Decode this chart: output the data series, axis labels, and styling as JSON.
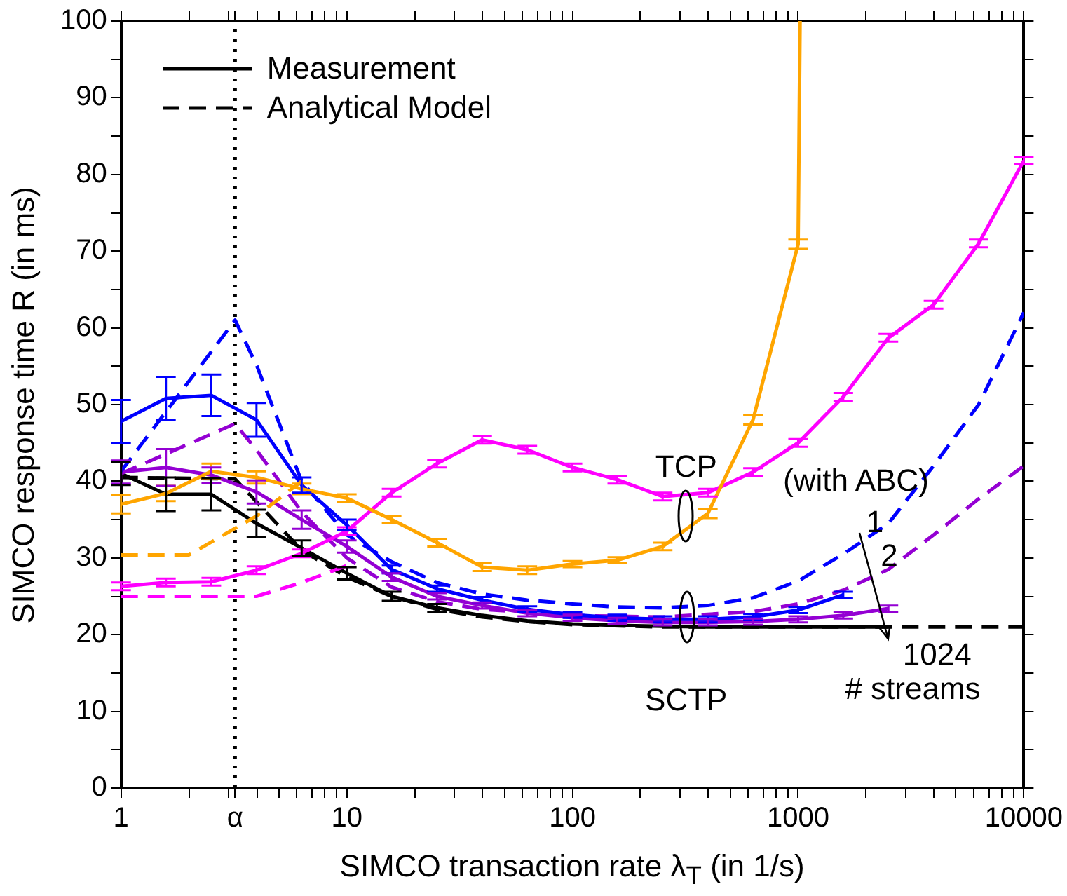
{
  "chart_data": {
    "type": "line",
    "xlabel": "SIMCO transaction rate λ$_{T}$ (in 1/s)",
    "ylabel": "SIMCO response time R (in ms)",
    "log": "x",
    "xlim": [
      1,
      10000
    ],
    "ylim": [
      0,
      100
    ],
    "xticks": [
      1,
      {
        "value": 2,
        "label": null
      },
      {
        "value": 3,
        "label": null
      },
      {
        "value": 3.2,
        "label": "α"
      },
      {
        "value": 4,
        "label": null
      },
      {
        "value": 5,
        "label": null
      },
      {
        "value": 6,
        "label": null
      },
      {
        "value": 7,
        "label": null
      },
      {
        "value": 8,
        "label": null
      },
      {
        "value": 9,
        "label": null
      },
      10,
      {
        "value": 20,
        "label": null
      },
      {
        "value": 30,
        "label": null
      },
      {
        "value": 40,
        "label": null
      },
      {
        "value": 50,
        "label": null
      },
      {
        "value": 60,
        "label": null
      },
      {
        "value": 70,
        "label": null
      },
      {
        "value": 80,
        "label": null
      },
      {
        "value": 90,
        "label": null
      },
      100,
      {
        "value": 200,
        "label": null
      },
      {
        "value": 300,
        "label": null
      },
      {
        "value": 400,
        "label": null
      },
      {
        "value": 500,
        "label": null
      },
      {
        "value": 600,
        "label": null
      },
      {
        "value": 700,
        "label": null
      },
      {
        "value": 800,
        "label": null
      },
      {
        "value": 900,
        "label": null
      },
      1000,
      {
        "value": 2000,
        "label": null
      },
      {
        "value": 3000,
        "label": null
      },
      {
        "value": 4000,
        "label": null
      },
      {
        "value": 5000,
        "label": null
      },
      {
        "value": 6000,
        "label": null
      },
      {
        "value": 7000,
        "label": null
      },
      {
        "value": 8000,
        "label": null
      },
      {
        "value": 9000,
        "label": null
      },
      10000
    ],
    "yticks": [
      0,
      {
        "value": 5,
        "label": null
      },
      10,
      {
        "value": 15,
        "label": null
      },
      20,
      {
        "value": 25,
        "label": null
      },
      30,
      {
        "value": 35,
        "label": null
      },
      40,
      {
        "value": 45,
        "label": null
      },
      50,
      {
        "value": 55,
        "label": null
      },
      60,
      {
        "value": 65,
        "label": null
      },
      70,
      {
        "value": 75,
        "label": null
      },
      80,
      {
        "value": 85,
        "label": null
      },
      90,
      {
        "value": 95,
        "label": null
      },
      100
    ],
    "grid": false,
    "legend": "top left",
    "marker": "none",
    "line_style": "solid",
    "ref_lines": [
      {
        "axis": "x",
        "value": 3.2,
        "color": "#000000",
        "line_style": "dotted"
      }
    ],
    "series": [
      {
        "color": "#ffa500",
        "x": [
          1,
          1.58,
          2.51,
          3.98,
          6.31,
          10,
          15.8,
          25.1,
          39.8,
          63.1,
          100,
          158,
          251,
          398,
          631,
          1000,
          1020
        ],
        "values": [
          37,
          38.4,
          41.3,
          40.5,
          39,
          37.8,
          35,
          32,
          28.8,
          28.4,
          29.2,
          29.7,
          31.5,
          35.8,
          48,
          70.9,
          100
        ],
        "errors": [
          1.2,
          1,
          1,
          0.8,
          0.7,
          0.5,
          0.5,
          0.5,
          0.5,
          0.5,
          0.4,
          0.4,
          0.5,
          0.6,
          0.6,
          0.6,
          null
        ]
      },
      {
        "color": "#ffa500",
        "line_style": "dashed",
        "x": [
          1,
          2,
          4,
          6.31
        ],
        "values": [
          30.4,
          30.4,
          35.5,
          40
        ]
      },
      {
        "color": "#ff00ff",
        "x": [
          1,
          1.58,
          2.51,
          3.98,
          6.31,
          10,
          15.8,
          25.1,
          39.8,
          63.1,
          100,
          158,
          251,
          398,
          631,
          1000,
          1585,
          2512,
          3981,
          6310,
          10000
        ],
        "values": [
          26.3,
          26.8,
          26.9,
          28.4,
          30.6,
          33.5,
          38.5,
          42.3,
          45.4,
          44.1,
          41.8,
          40.2,
          38,
          38.5,
          41.2,
          45,
          51,
          58.7,
          63,
          71,
          81.8
        ],
        "errors": [
          0.5,
          0.5,
          0.5,
          0.5,
          0.5,
          0.5,
          0.5,
          0.5,
          0.5,
          0.5,
          0.5,
          0.5,
          0.5,
          0.5,
          0.5,
          0.5,
          0.5,
          0.5,
          0.5,
          0.5,
          0.5
        ]
      },
      {
        "color": "#ff00ff",
        "line_style": "dashed",
        "x": [
          1,
          3.98,
          6.31,
          10
        ],
        "values": [
          25,
          25,
          26.8,
          29
        ]
      },
      {
        "color": "#0000ff",
        "x": [
          1,
          1.58,
          2.51,
          3.98,
          6.31,
          10,
          15.8,
          25.1,
          39.8,
          63.1,
          100,
          158,
          251,
          398,
          631,
          1000,
          1585
        ],
        "values": [
          47.8,
          50.8,
          51.2,
          48,
          39.5,
          34.3,
          28.5,
          26,
          24.5,
          23.3,
          22.6,
          22.2,
          22,
          22,
          22.3,
          23.2,
          25.2
        ],
        "errors": [
          2.8,
          2.8,
          2.7,
          2.2,
          1,
          0.7,
          0.5,
          0.4,
          0.4,
          0.4,
          0.4,
          0.4,
          0.4,
          0.4,
          0.4,
          0.4,
          0.4
        ]
      },
      {
        "color": "#0000ff",
        "line_style": "dashed",
        "x": [
          1,
          3.2,
          4,
          6.31,
          10,
          15.8,
          25.1,
          39.8,
          63.1,
          100,
          158,
          251,
          398,
          631,
          1000,
          1585,
          2512,
          3981,
          6310,
          10000
        ],
        "values": [
          41.3,
          61,
          55,
          40,
          33,
          29.5,
          26.8,
          25.3,
          24.5,
          24,
          23.6,
          23.5,
          23.8,
          24.8,
          27,
          30.5,
          34.5,
          42,
          50,
          62
        ]
      },
      {
        "color": "#9400d3",
        "x": [
          1,
          1.58,
          2.51,
          3.98,
          6.31,
          10,
          15.8,
          25.1,
          39.8,
          63.1,
          100,
          158,
          251,
          398,
          631,
          1000,
          1585,
          2512
        ],
        "values": [
          41.2,
          41.8,
          40.8,
          38.6,
          35,
          31.5,
          27.5,
          25,
          23.8,
          22.8,
          22.2,
          21.8,
          21.6,
          21.6,
          21.7,
          22,
          22.5,
          23.4
        ],
        "errors": [
          1.5,
          2.4,
          1,
          1.5,
          1.2,
          0.8,
          0.5,
          0.4,
          0.4,
          0.4,
          0.4,
          0.4,
          0.4,
          0.4,
          0.4,
          0.4,
          0.4,
          0.4
        ]
      },
      {
        "color": "#9400d3",
        "line_style": "dashed",
        "x": [
          1,
          3.2,
          4,
          6.31,
          10,
          15.8,
          25.1,
          39.8,
          100,
          251,
          631,
          1000,
          1585,
          2512,
          3981,
          6310,
          10000
        ],
        "values": [
          41,
          47.5,
          44,
          36,
          30,
          26.2,
          24.3,
          23.3,
          22.5,
          22.3,
          23,
          24,
          25.8,
          28.5,
          33,
          37.7,
          42
        ]
      },
      {
        "name": "Measurement",
        "color": "#000000",
        "x": [
          1,
          1.58,
          2.51,
          3.98,
          6.31,
          10,
          15.8,
          25.1,
          39.8,
          63.1,
          100,
          158,
          251,
          398,
          631,
          1000,
          1585,
          2512
        ],
        "values": [
          41,
          38.3,
          38.3,
          34.5,
          31.3,
          28,
          25,
          23.5,
          22.5,
          21.8,
          21.4,
          21.2,
          21.1,
          21,
          21,
          21,
          21,
          21
        ],
        "errors": [
          1.5,
          2.2,
          2.1,
          1.8,
          1,
          0.8,
          0.6,
          0.5,
          null,
          null,
          null,
          null,
          null,
          null,
          null,
          null,
          null,
          null
        ]
      },
      {
        "name": "Analytical Model",
        "color": "#000000",
        "line_style": "dashed",
        "x": [
          1,
          3.2,
          6.31,
          10,
          15.8,
          25.1,
          39.8,
          63.1,
          100,
          251,
          1000,
          10000
        ],
        "values": [
          40.5,
          40.3,
          31,
          27.5,
          25,
          23.3,
          22.3,
          21.7,
          21.3,
          21,
          21,
          21
        ]
      }
    ],
    "annotations": [
      "TCP",
      "SCTP",
      "(with ABC)",
      "1",
      "2",
      "1024",
      "# streams"
    ]
  }
}
